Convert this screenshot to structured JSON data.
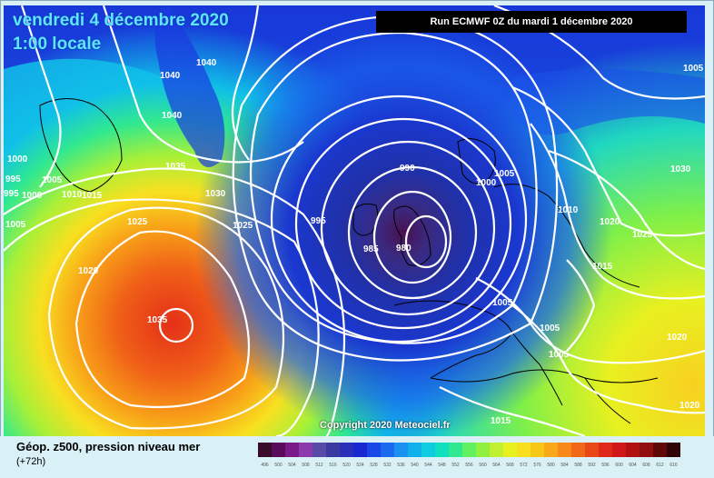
{
  "header": {
    "date": "vendredi 4 décembre 2020",
    "time": "1:00 locale",
    "run": "Run ECMWF 0Z du mardi 1 décembre 2020"
  },
  "copyright": "Copyright 2020 Meteociel.fr",
  "legend": {
    "title": "Géop. z500, pression niveau mer",
    "subtitle": "(+72h)",
    "scale_values": [
      "496",
      "500",
      "504",
      "508",
      "512",
      "516",
      "520",
      "524",
      "528",
      "532",
      "536",
      "540",
      "544",
      "548",
      "552",
      "556",
      "560",
      "564",
      "568",
      "572",
      "576",
      "580",
      "584",
      "588",
      "592",
      "596",
      "600",
      "604",
      "608",
      "612",
      "616"
    ],
    "scale_colors": [
      "#3a0a2a",
      "#5a0a5a",
      "#7a1a8a",
      "#8a3aaa",
      "#5a4aa8",
      "#3a3aa0",
      "#2a30b8",
      "#1a28d0",
      "#1a48e8",
      "#1a6af0",
      "#1a90f0",
      "#10b0ec",
      "#10cce0",
      "#10e0c0",
      "#30e890",
      "#60f060",
      "#90f040",
      "#c0f030",
      "#e8f020",
      "#f8e020",
      "#f8c818",
      "#f8a818",
      "#f88818",
      "#f06818",
      "#e84818",
      "#e02818",
      "#d01818",
      "#b01010",
      "#901010",
      "#600808",
      "#300404"
    ]
  },
  "isobar_labels": [
    "1040",
    "1040",
    "1040",
    "1035",
    "1030",
    "1025",
    "1025",
    "1020",
    "1035",
    "1000",
    "995",
    "995",
    "1005",
    "1010",
    "1015",
    "1000",
    "1005",
    "990",
    "995",
    "985",
    "980",
    "1005",
    "1000",
    "1005",
    "1010",
    "1020",
    "1025",
    "1030",
    "1005",
    "1015",
    "1005",
    "1005",
    "1020",
    "1015",
    "1020"
  ],
  "colors": {
    "isobar": "#ffffff",
    "coast": "#000000",
    "date_text": "#5ee6ff",
    "run_bg": "#000000"
  }
}
